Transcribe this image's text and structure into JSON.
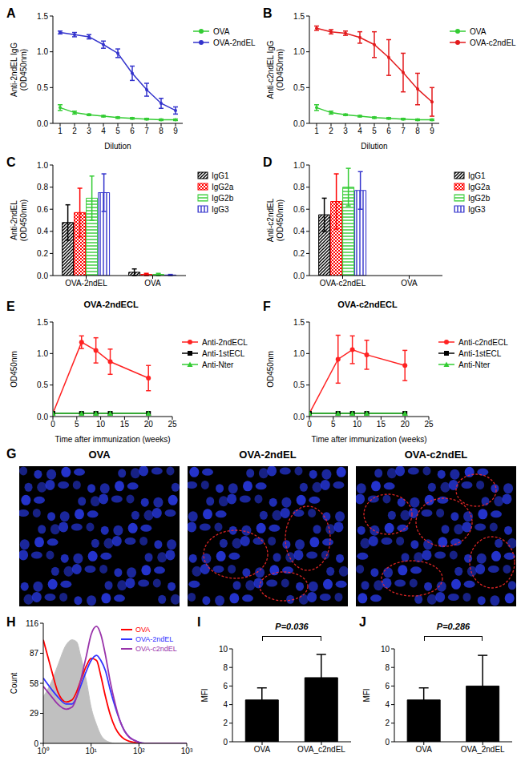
{
  "chart_data": [
    {
      "panel_label": "A",
      "type": "line",
      "x_label": "Dilution",
      "y_label": "Anti-2ndEL IgG (OD450nm)",
      "grid": false,
      "legend": "right",
      "x": [
        1,
        2,
        3,
        4,
        5,
        6,
        7,
        8,
        9
      ],
      "xlim": [
        0.5,
        9.5
      ],
      "xticks": [
        1,
        2,
        3,
        4,
        5,
        6,
        7,
        8,
        9
      ],
      "ylim": [
        0,
        1.5
      ],
      "yticks": [
        {
          "value": 0,
          "label": "0.0"
        },
        {
          "value": 0.5,
          "label": "0.5"
        },
        {
          "value": 1,
          "label": "1.0"
        },
        {
          "value": 1.5,
          "label": "1.5"
        }
      ],
      "series": [
        {
          "name": "OVA",
          "color": "#33cc33",
          "marker": "circle",
          "values": [
            0.22,
            0.15,
            0.12,
            0.1,
            0.08,
            0.07,
            0.06,
            0.05,
            0.05
          ],
          "errors": [
            0.04,
            0.02,
            0.01,
            0.01,
            0.01,
            0.01,
            0.01,
            0.01,
            0.01
          ]
        },
        {
          "name": "OVA-2ndEL",
          "color": "#3333cc",
          "marker": "circle",
          "values": [
            1.27,
            1.24,
            1.21,
            1.1,
            0.98,
            0.7,
            0.47,
            0.28,
            0.18
          ],
          "errors": [
            0.02,
            0.03,
            0.03,
            0.05,
            0.06,
            0.1,
            0.09,
            0.07,
            0.05
          ]
        }
      ]
    },
    {
      "panel_label": "B",
      "type": "line",
      "x_label": "Dilution",
      "y_label": "Anti-c2ndEL IgG (OD450nm)",
      "grid": false,
      "legend": "right",
      "x": [
        1,
        2,
        3,
        4,
        5,
        6,
        7,
        8,
        9
      ],
      "xlim": [
        0.5,
        9.5
      ],
      "xticks": [
        1,
        2,
        3,
        4,
        5,
        6,
        7,
        8,
        9
      ],
      "ylim": [
        0,
        1.5
      ],
      "yticks": [
        {
          "value": 0,
          "label": "0.0"
        },
        {
          "value": 0.5,
          "label": "0.5"
        },
        {
          "value": 1,
          "label": "1.0"
        },
        {
          "value": 1.5,
          "label": "1.5"
        }
      ],
      "series": [
        {
          "name": "OVA",
          "color": "#33cc33",
          "marker": "circle",
          "values": [
            0.22,
            0.15,
            0.12,
            0.1,
            0.08,
            0.07,
            0.06,
            0.05,
            0.05
          ],
          "errors": [
            0.04,
            0.02,
            0.01,
            0.01,
            0.01,
            0.01,
            0.01,
            0.01,
            0.01
          ]
        },
        {
          "name": "OVA-c2ndEL",
          "color": "#e31a1c",
          "marker": "circle",
          "values": [
            1.33,
            1.28,
            1.26,
            1.2,
            1.1,
            0.92,
            0.71,
            0.48,
            0.3
          ],
          "errors": [
            0.03,
            0.03,
            0.03,
            0.08,
            0.18,
            0.25,
            0.27,
            0.22,
            0.2
          ]
        }
      ]
    },
    {
      "panel_label": "C",
      "type": "bar",
      "y_label": "Anti-2ndEL (OD450nm)",
      "grid": false,
      "legend": "right",
      "categories": [
        "OVA-2ndEL",
        "OVA"
      ],
      "ylim": [
        0,
        1
      ],
      "yticks": [
        {
          "value": 0,
          "label": "0.0"
        },
        {
          "value": 0.2,
          "label": "0.2"
        },
        {
          "value": 0.4,
          "label": "0.4"
        },
        {
          "value": 0.6,
          "label": "0.6"
        },
        {
          "value": 0.8,
          "label": "0.8"
        },
        {
          "value": 1,
          "label": "1.0"
        }
      ],
      "series": [
        {
          "name": "IgG1",
          "color": "#000000",
          "values": [
            0.48,
            0.03
          ],
          "errors": [
            0.16,
            0.03
          ]
        },
        {
          "name": "IgG2a",
          "color": "#ff0000",
          "values": [
            0.57,
            0.01
          ],
          "errors": [
            0.22,
            0.01
          ]
        },
        {
          "name": "IgG2b",
          "color": "#33cc33",
          "values": [
            0.7,
            0.01
          ],
          "errors": [
            0.2,
            0.01
          ]
        },
        {
          "name": "IgG3",
          "color": "#3333cc",
          "values": [
            0.75,
            0.005
          ],
          "errors": [
            0.17,
            0.005
          ]
        }
      ]
    },
    {
      "panel_label": "D",
      "type": "bar",
      "y_label": "Anti-c2ndEL (OD450nm)",
      "grid": false,
      "legend": "right",
      "categories": [
        "OVA-c2ndEL",
        "OVA"
      ],
      "ylim": [
        0,
        1
      ],
      "yticks": [
        {
          "value": 0,
          "label": "0.0"
        },
        {
          "value": 0.2,
          "label": "0.2"
        },
        {
          "value": 0.4,
          "label": "0.4"
        },
        {
          "value": 0.6,
          "label": "0.6"
        },
        {
          "value": 0.8,
          "label": "0.8"
        },
        {
          "value": 1,
          "label": "1.0"
        }
      ],
      "series": [
        {
          "name": "IgG1",
          "color": "#000000",
          "values": [
            0.55,
            0
          ],
          "errors": [
            0.15,
            0
          ]
        },
        {
          "name": "IgG2a",
          "color": "#ff0000",
          "values": [
            0.67,
            0
          ],
          "errors": [
            0.25,
            0
          ]
        },
        {
          "name": "IgG2b",
          "color": "#33cc33",
          "values": [
            0.8,
            0
          ],
          "errors": [
            0.17,
            0
          ]
        },
        {
          "name": "IgG3",
          "color": "#3333cc",
          "values": [
            0.77,
            0
          ],
          "errors": [
            0.17,
            0
          ]
        }
      ]
    },
    {
      "panel_label": "E",
      "type": "line",
      "title": "OVA-2ndECL",
      "x_label": "Time after immunization (weeks)",
      "y_label": "OD450nm",
      "grid": false,
      "legend": "right",
      "x": [
        0,
        6,
        9,
        12,
        20
      ],
      "xlim": [
        0,
        25
      ],
      "xticks": [
        0,
        5,
        10,
        15,
        20,
        25
      ],
      "ylim": [
        0,
        1.5
      ],
      "yticks": [
        {
          "value": 0,
          "label": "0.0"
        },
        {
          "value": 0.5,
          "label": "0.5"
        },
        {
          "value": 1,
          "label": "1.0"
        },
        {
          "value": 1.5,
          "label": "1.5"
        }
      ],
      "series": [
        {
          "name": "Anti-2ndECL",
          "color": "#ff2222",
          "marker": "circle",
          "values": [
            0.05,
            1.18,
            1.05,
            0.87,
            0.61
          ],
          "errors": [
            0,
            0.1,
            0.2,
            0.2,
            0.2
          ]
        },
        {
          "name": "Anti-1stECL",
          "color": "#000000",
          "marker": "square",
          "values": [
            0.05,
            0.05,
            0.05,
            0.05,
            0.05
          ]
        },
        {
          "name": "Anti-Nter",
          "color": "#33cc33",
          "marker": "triangle",
          "values": [
            0.05,
            0.05,
            0.05,
            0.05,
            0.05
          ]
        }
      ]
    },
    {
      "panel_label": "F",
      "type": "line",
      "title": "OVA-c2ndECL",
      "x_label": "Time after immunization (weeks)",
      "y_label": "OD450nm",
      "grid": false,
      "legend": "right",
      "x": [
        0,
        6,
        9,
        12,
        20
      ],
      "xlim": [
        0,
        25
      ],
      "xticks": [
        0,
        5,
        10,
        15,
        20,
        25
      ],
      "ylim": [
        0,
        1.5
      ],
      "yticks": [
        {
          "value": 0,
          "label": "0.0"
        },
        {
          "value": 0.5,
          "label": "0.5"
        },
        {
          "value": 1,
          "label": "1.0"
        },
        {
          "value": 1.5,
          "label": "1.5"
        }
      ],
      "series": [
        {
          "name": "Anti-c2ndECL",
          "color": "#ff2222",
          "marker": "circle",
          "values": [
            0.05,
            0.91,
            1.06,
            0.98,
            0.81
          ],
          "errors": [
            0,
            0.38,
            0.22,
            0.23,
            0.24
          ]
        },
        {
          "name": "Anti-1stECL",
          "color": "#000000",
          "marker": "square",
          "values": [
            0.05,
            0.05,
            0.05,
            0.05,
            0.05
          ]
        },
        {
          "name": "Anti-Nter",
          "color": "#33cc33",
          "marker": "triangle",
          "values": [
            0.05,
            0.05,
            0.05,
            0.05,
            0.05
          ]
        }
      ]
    },
    {
      "panel_label": "G",
      "type": "image",
      "categories": [
        "OVA",
        "OVA-2ndEL",
        "OVA-c2ndEL"
      ]
    },
    {
      "panel_label": "H",
      "type": "line",
      "y_label": "Count",
      "grid": false,
      "legend": "upper right",
      "log": "x",
      "x": [
        1,
        1.5,
        2,
        3,
        4,
        5,
        6,
        8,
        10,
        13,
        16,
        20,
        25,
        32,
        40,
        50,
        63,
        80,
        100,
        130,
        160,
        200,
        400,
        1000
      ],
      "xlim": [
        1,
        1000
      ],
      "xticks": [
        {
          "value": 1,
          "label": "10⁰"
        },
        {
          "value": 10,
          "label": "10¹"
        },
        {
          "value": 100,
          "label": "10²"
        },
        {
          "value": 1000,
          "label": "10³"
        }
      ],
      "ylim": [
        0,
        116
      ],
      "yticks": [
        0,
        29,
        58,
        87,
        116
      ],
      "series": [
        {
          "type": "area",
          "color": "#c0c0c0",
          "values": [
            45,
            60,
            75,
            95,
            100,
            98,
            85,
            60,
            35,
            18,
            8,
            3,
            1,
            0,
            0,
            0,
            0,
            0,
            0,
            0,
            0,
            0,
            0,
            0
          ]
        },
        {
          "name": "OVA",
          "color": "#ff0000",
          "values": [
            100,
            70,
            50,
            40,
            42,
            50,
            60,
            75,
            82,
            80,
            65,
            45,
            28,
            15,
            8,
            4,
            2,
            1,
            0,
            0,
            0,
            0,
            0,
            0
          ]
        },
        {
          "name": "OVA-2ndEL",
          "color": "#3333ff",
          "values": [
            63,
            52,
            45,
            38,
            38,
            45,
            55,
            70,
            80,
            85,
            80,
            70,
            52,
            35,
            22,
            12,
            6,
            3,
            1,
            0,
            0,
            0,
            0,
            0
          ]
        },
        {
          "name": "OVA-c2ndEL",
          "color": "#9933aa",
          "values": [
            55,
            45,
            38,
            33,
            35,
            45,
            60,
            85,
            105,
            113,
            105,
            85,
            60,
            38,
            22,
            12,
            6,
            3,
            1,
            0,
            0,
            0,
            0,
            0
          ]
        }
      ]
    },
    {
      "panel_label": "I",
      "type": "bar",
      "y_label": "MFI",
      "grid": false,
      "annotation": "P=0.036",
      "categories": [
        "OVA",
        "OVA_c2ndEL"
      ],
      "values": [
        4.5,
        6.9
      ],
      "errors": [
        1.3,
        2.5
      ],
      "color": "#000000",
      "ylim": [
        0,
        10
      ],
      "yticks": [
        0,
        2,
        4,
        6,
        8,
        10
      ]
    },
    {
      "panel_label": "J",
      "type": "bar",
      "y_label": "MFI",
      "grid": false,
      "annotation": "P=0.286",
      "categories": [
        "OVA",
        "OVA_2ndEL"
      ],
      "values": [
        4.5,
        6.0
      ],
      "errors": [
        1.3,
        3.3
      ],
      "color": "#000000",
      "ylim": [
        0,
        10
      ],
      "yticks": [
        0,
        2,
        4,
        6,
        8,
        10
      ]
    }
  ]
}
